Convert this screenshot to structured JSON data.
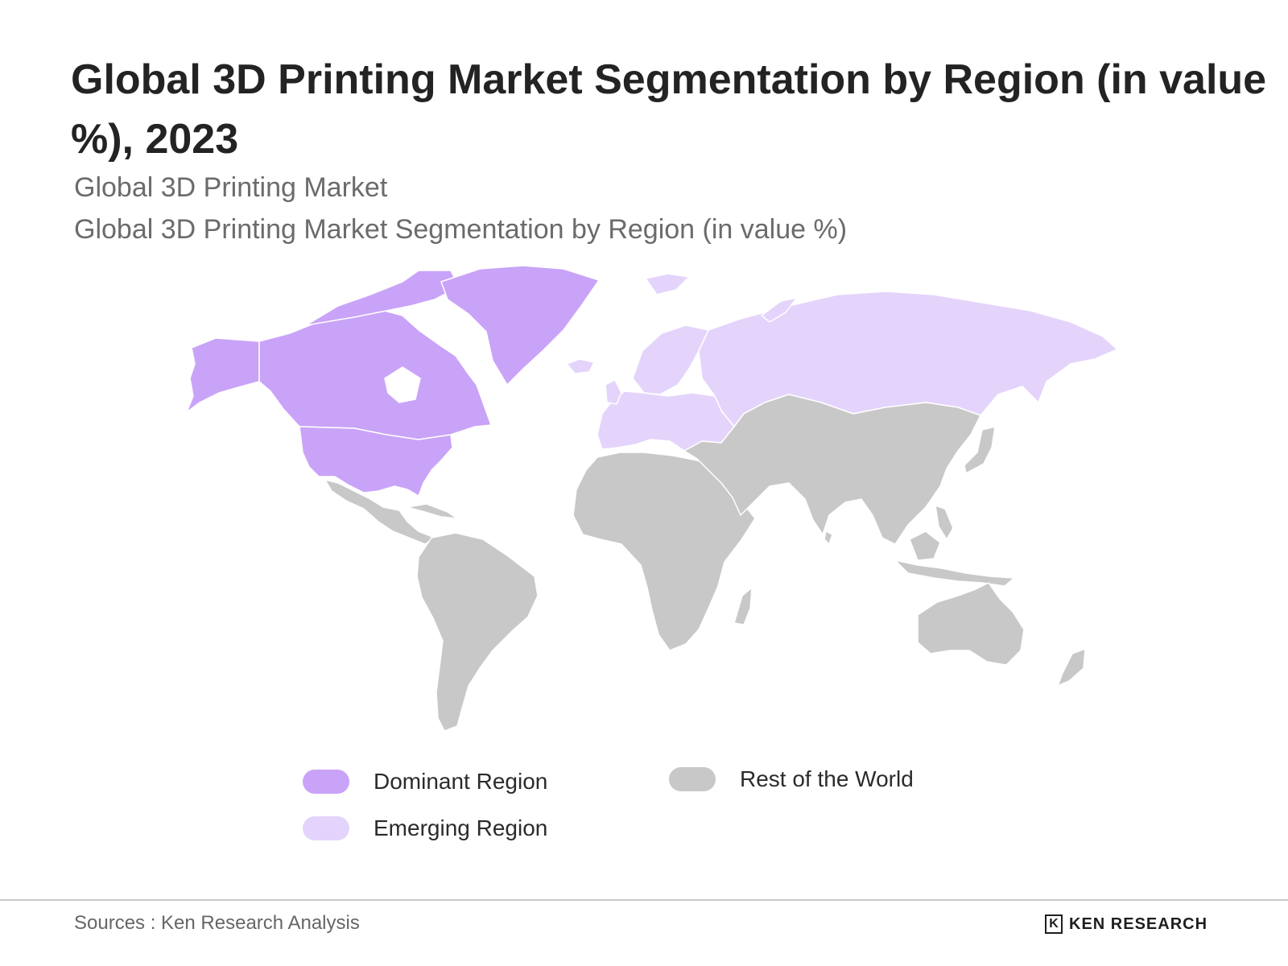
{
  "title": "Global 3D Printing Market Segmentation by Region (in value %), 2023",
  "subtitle_1": "Global 3D Printing Market",
  "subtitle_2": "Global 3D Printing Market Segmentation by Region (in value %)",
  "colors": {
    "dominant": "#c9a3f8",
    "emerging": "#e4d4fb",
    "rest": "#c8c8c8",
    "borders": "#ffffff"
  },
  "regions": {
    "dominant": [
      "Alaska",
      "Canada",
      "Greenland",
      "United States"
    ],
    "emerging": [
      "Europe",
      "Russia",
      "Iceland",
      "Svalbard"
    ],
    "rest": [
      "Latin America",
      "Africa",
      "Middle East",
      "Asia",
      "Oceania"
    ]
  },
  "legend": [
    {
      "key": "dominant",
      "label": "Dominant Region"
    },
    {
      "key": "emerging",
      "label": "Emerging Region"
    },
    {
      "key": "rest",
      "label": "Rest of the World"
    }
  ],
  "sources": "Sources : Ken Research Analysis",
  "logo": {
    "mark": "K",
    "text": "KEN RESEARCH"
  }
}
